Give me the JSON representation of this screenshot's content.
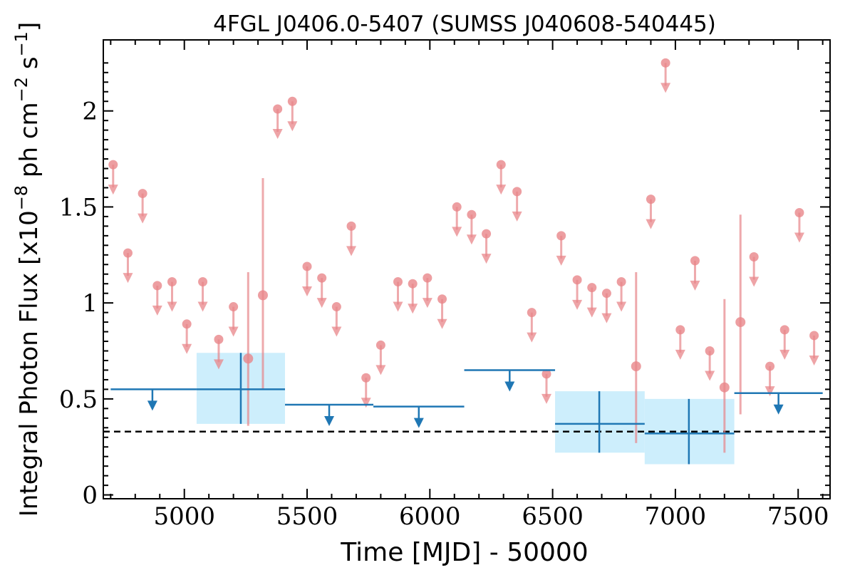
{
  "chart_data": {
    "type": "scatter",
    "title": "4FGL J0406.0-5407 (SUMSS J040608-540445)",
    "xlabel": "Time [MJD] - 50000",
    "ylabel": "Integral Photon Flux [x10",
    "ylabel_exp1": "−8",
    "ylabel_mid": " ph cm",
    "ylabel_exp2": "−2",
    "ylabel_mid2": " s",
    "ylabel_exp3": "−1",
    "ylabel_end": "]",
    "xlim": [
      4670,
      7630
    ],
    "ylim": [
      -0.02,
      2.37
    ],
    "xticks": [
      5000,
      5500,
      6000,
      6500,
      7000,
      7500
    ],
    "xtick_labels": [
      "5000",
      "5500",
      "6000",
      "6500",
      "7000",
      "7500"
    ],
    "yticks": [
      0,
      0.5,
      1,
      1.5,
      2
    ],
    "ytick_labels": [
      "0",
      "0.5",
      "1",
      "1.5",
      "2"
    ],
    "reference_line": 0.33,
    "colors": {
      "short_bin": "#e8868a",
      "long_bin": "#1f77b4",
      "long_bin_box": "#cdeefc",
      "reference": "#000000"
    },
    "short_bin_upper_limits": [
      {
        "x": 4710,
        "y": 1.72
      },
      {
        "x": 4770,
        "y": 1.26
      },
      {
        "x": 4830,
        "y": 1.57
      },
      {
        "x": 4890,
        "y": 1.09
      },
      {
        "x": 4950,
        "y": 1.11
      },
      {
        "x": 5010,
        "y": 0.89
      },
      {
        "x": 5075,
        "y": 1.11
      },
      {
        "x": 5140,
        "y": 0.81
      },
      {
        "x": 5200,
        "y": 0.98
      },
      {
        "x": 5380,
        "y": 2.01
      },
      {
        "x": 5440,
        "y": 2.05
      },
      {
        "x": 5500,
        "y": 1.19
      },
      {
        "x": 5560,
        "y": 1.13
      },
      {
        "x": 5620,
        "y": 0.98
      },
      {
        "x": 5680,
        "y": 1.4
      },
      {
        "x": 5740,
        "y": 0.61
      },
      {
        "x": 5800,
        "y": 0.78
      },
      {
        "x": 5870,
        "y": 1.11
      },
      {
        "x": 5930,
        "y": 1.1
      },
      {
        "x": 5990,
        "y": 1.13
      },
      {
        "x": 6050,
        "y": 1.02
      },
      {
        "x": 6110,
        "y": 1.5
      },
      {
        "x": 6170,
        "y": 1.46
      },
      {
        "x": 6230,
        "y": 1.36
      },
      {
        "x": 6290,
        "y": 1.72
      },
      {
        "x": 6355,
        "y": 1.58
      },
      {
        "x": 6415,
        "y": 0.95
      },
      {
        "x": 6475,
        "y": 0.63
      },
      {
        "x": 6535,
        "y": 1.35
      },
      {
        "x": 6600,
        "y": 1.12
      },
      {
        "x": 6660,
        "y": 1.08
      },
      {
        "x": 6720,
        "y": 1.05
      },
      {
        "x": 6780,
        "y": 1.11
      },
      {
        "x": 6900,
        "y": 1.54
      },
      {
        "x": 6960,
        "y": 2.25
      },
      {
        "x": 7020,
        "y": 0.86
      },
      {
        "x": 7080,
        "y": 1.22
      },
      {
        "x": 7140,
        "y": 0.75
      },
      {
        "x": 7320,
        "y": 1.24
      },
      {
        "x": 7385,
        "y": 0.67
      },
      {
        "x": 7445,
        "y": 0.86
      },
      {
        "x": 7505,
        "y": 1.47
      },
      {
        "x": 7565,
        "y": 0.83
      }
    ],
    "short_bin_detections": [
      {
        "x": 5260,
        "y": 0.71,
        "ylow": 0.36,
        "yhigh": 1.16
      },
      {
        "x": 5320,
        "y": 1.04,
        "ylow": 0.55,
        "yhigh": 1.65
      },
      {
        "x": 6840,
        "y": 0.67,
        "ylow": 0.27,
        "yhigh": 1.16
      },
      {
        "x": 7200,
        "y": 0.56,
        "ylow": 0.22,
        "yhigh": 1.02
      },
      {
        "x": 7265,
        "y": 0.9,
        "ylow": 0.42,
        "yhigh": 1.46
      }
    ],
    "long_bin_upper_limits": [
      {
        "x0": 4700,
        "x1": 5050,
        "xc": 4870,
        "y": 0.55
      },
      {
        "x0": 5410,
        "x1": 5770,
        "xc": 5590,
        "y": 0.47
      },
      {
        "x0": 5770,
        "x1": 6140,
        "xc": 5955,
        "y": 0.46
      },
      {
        "x0": 6140,
        "x1": 6510,
        "xc": 6325,
        "y": 0.65
      },
      {
        "x0": 7240,
        "x1": 7600,
        "xc": 7420,
        "y": 0.53
      }
    ],
    "long_bin_detections": [
      {
        "x0": 5050,
        "x1": 5410,
        "xc": 5230,
        "y": 0.55,
        "ylow": 0.37,
        "yhigh": 0.74
      },
      {
        "x0": 6510,
        "x1": 6875,
        "xc": 6690,
        "y": 0.37,
        "ylow": 0.22,
        "yhigh": 0.54
      },
      {
        "x0": 6875,
        "x1": 7240,
        "xc": 7055,
        "y": 0.32,
        "ylow": 0.16,
        "yhigh": 0.5
      }
    ]
  }
}
